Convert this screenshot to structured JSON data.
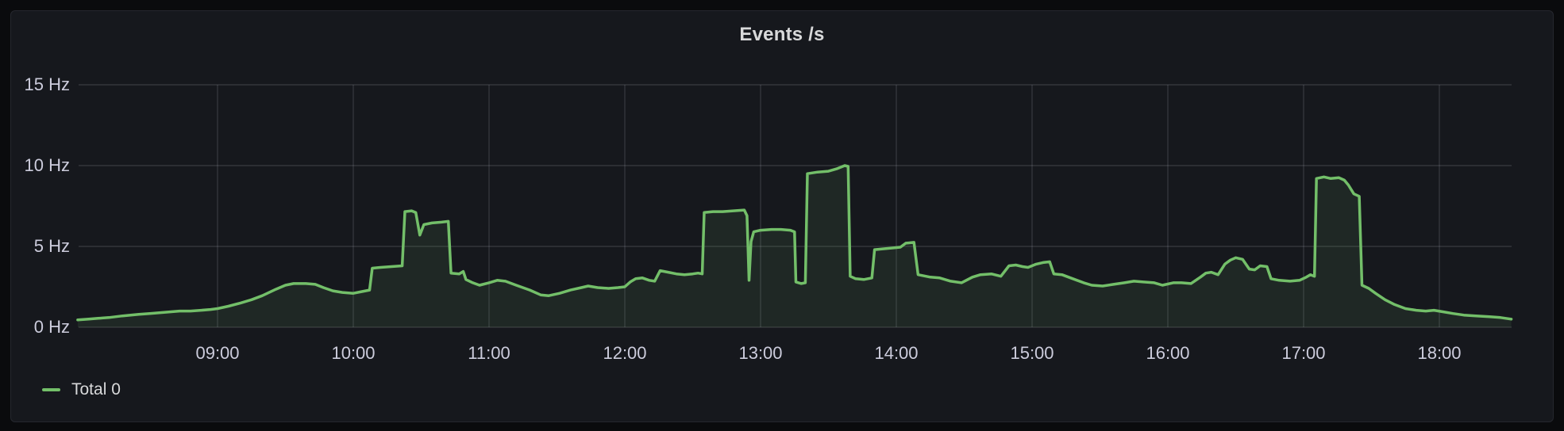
{
  "panel": {
    "title": "Events /s"
  },
  "legend": {
    "series": [
      {
        "label": "Total 0",
        "color": "#73bf69"
      }
    ],
    "position": "bottom-left"
  },
  "colors": {
    "page_background": "#0a0b0d",
    "panel_background": "#16181d",
    "panel_border": "#25272e",
    "grid": "rgba(204,204,220,0.16)",
    "axis_text": "#ccccdc",
    "title_text": "#d8d9da",
    "series_line": "#73bf69",
    "series_fill": "rgba(115,191,105,0.10)"
  },
  "chart_data": {
    "type": "line",
    "title": "Events /s",
    "xlabel": "",
    "ylabel": "Hz",
    "unit": "Hz",
    "grid": true,
    "legend_position": "bottom-left",
    "x_range_hours": [
      7.97,
      18.53
    ],
    "ylim": [
      0,
      16.5
    ],
    "y_ticks": [
      {
        "label": "0 Hz",
        "value": 0
      },
      {
        "label": "5 Hz",
        "value": 5
      },
      {
        "label": "10 Hz",
        "value": 10
      },
      {
        "label": "15 Hz",
        "value": 15
      }
    ],
    "x_ticks": [
      {
        "label": "09:00",
        "hour": 9
      },
      {
        "label": "10:00",
        "hour": 10
      },
      {
        "label": "11:00",
        "hour": 11
      },
      {
        "label": "12:00",
        "hour": 12
      },
      {
        "label": "13:00",
        "hour": 13
      },
      {
        "label": "14:00",
        "hour": 14
      },
      {
        "label": "15:00",
        "hour": 15
      },
      {
        "label": "16:00",
        "hour": 16
      },
      {
        "label": "17:00",
        "hour": 17
      },
      {
        "label": "18:00",
        "hour": 18
      }
    ],
    "series": [
      {
        "name": "Total 0",
        "color": "#73bf69",
        "fill_color": "rgba(115,191,105,0.10)",
        "points_format": [
          "time_decimal_hours",
          "hz"
        ],
        "points": [
          [
            7.97,
            0.45
          ],
          [
            8.05,
            0.5
          ],
          [
            8.12,
            0.55
          ],
          [
            8.2,
            0.6
          ],
          [
            8.3,
            0.7
          ],
          [
            8.42,
            0.8
          ],
          [
            8.5,
            0.85
          ],
          [
            8.58,
            0.9
          ],
          [
            8.65,
            0.95
          ],
          [
            8.72,
            1.0
          ],
          [
            8.8,
            1.0
          ],
          [
            8.88,
            1.05
          ],
          [
            8.95,
            1.1
          ],
          [
            9.0,
            1.15
          ],
          [
            9.08,
            1.3
          ],
          [
            9.17,
            1.5
          ],
          [
            9.25,
            1.7
          ],
          [
            9.33,
            1.95
          ],
          [
            9.43,
            2.35
          ],
          [
            9.5,
            2.6
          ],
          [
            9.56,
            2.7
          ],
          [
            9.65,
            2.7
          ],
          [
            9.72,
            2.65
          ],
          [
            9.78,
            2.45
          ],
          [
            9.85,
            2.25
          ],
          [
            9.92,
            2.15
          ],
          [
            10.0,
            2.1
          ],
          [
            10.06,
            2.2
          ],
          [
            10.12,
            2.3
          ],
          [
            10.14,
            3.65
          ],
          [
            10.2,
            3.7
          ],
          [
            10.28,
            3.75
          ],
          [
            10.36,
            3.8
          ],
          [
            10.38,
            7.15
          ],
          [
            10.43,
            7.2
          ],
          [
            10.46,
            7.1
          ],
          [
            10.49,
            5.7
          ],
          [
            10.52,
            6.35
          ],
          [
            10.58,
            6.45
          ],
          [
            10.65,
            6.5
          ],
          [
            10.7,
            6.55
          ],
          [
            10.72,
            3.35
          ],
          [
            10.78,
            3.3
          ],
          [
            10.81,
            3.45
          ],
          [
            10.83,
            2.95
          ],
          [
            10.88,
            2.75
          ],
          [
            10.93,
            2.6
          ],
          [
            11.0,
            2.75
          ],
          [
            11.06,
            2.9
          ],
          [
            11.12,
            2.85
          ],
          [
            11.2,
            2.6
          ],
          [
            11.3,
            2.3
          ],
          [
            11.38,
            2.0
          ],
          [
            11.44,
            1.95
          ],
          [
            11.52,
            2.1
          ],
          [
            11.6,
            2.3
          ],
          [
            11.68,
            2.45
          ],
          [
            11.73,
            2.55
          ],
          [
            11.8,
            2.45
          ],
          [
            11.88,
            2.4
          ],
          [
            11.95,
            2.45
          ],
          [
            12.0,
            2.5
          ],
          [
            12.04,
            2.8
          ],
          [
            12.08,
            3.0
          ],
          [
            12.13,
            3.05
          ],
          [
            12.18,
            2.9
          ],
          [
            12.22,
            2.85
          ],
          [
            12.26,
            3.5
          ],
          [
            12.32,
            3.4
          ],
          [
            12.38,
            3.3
          ],
          [
            12.44,
            3.25
          ],
          [
            12.5,
            3.3
          ],
          [
            12.54,
            3.35
          ],
          [
            12.57,
            3.3
          ],
          [
            12.585,
            7.1
          ],
          [
            12.65,
            7.15
          ],
          [
            12.72,
            7.15
          ],
          [
            12.8,
            7.2
          ],
          [
            12.88,
            7.25
          ],
          [
            12.9,
            6.9
          ],
          [
            12.915,
            2.9
          ],
          [
            12.93,
            5.3
          ],
          [
            12.95,
            5.9
          ],
          [
            13.0,
            6.0
          ],
          [
            13.08,
            6.05
          ],
          [
            13.15,
            6.05
          ],
          [
            13.22,
            6.0
          ],
          [
            13.25,
            5.9
          ],
          [
            13.26,
            2.8
          ],
          [
            13.3,
            2.7
          ],
          [
            13.33,
            2.75
          ],
          [
            13.345,
            9.5
          ],
          [
            13.42,
            9.6
          ],
          [
            13.5,
            9.65
          ],
          [
            13.56,
            9.8
          ],
          [
            13.62,
            10.0
          ],
          [
            13.645,
            9.95
          ],
          [
            13.66,
            3.15
          ],
          [
            13.7,
            3.0
          ],
          [
            13.76,
            2.95
          ],
          [
            13.82,
            3.05
          ],
          [
            13.84,
            4.8
          ],
          [
            13.9,
            4.85
          ],
          [
            13.97,
            4.9
          ],
          [
            14.03,
            4.95
          ],
          [
            14.07,
            5.2
          ],
          [
            14.13,
            5.25
          ],
          [
            14.16,
            3.25
          ],
          [
            14.25,
            3.1
          ],
          [
            14.32,
            3.05
          ],
          [
            14.4,
            2.85
          ],
          [
            14.48,
            2.75
          ],
          [
            14.56,
            3.1
          ],
          [
            14.62,
            3.25
          ],
          [
            14.7,
            3.3
          ],
          [
            14.77,
            3.15
          ],
          [
            14.83,
            3.8
          ],
          [
            14.88,
            3.85
          ],
          [
            14.93,
            3.75
          ],
          [
            14.97,
            3.7
          ],
          [
            15.03,
            3.9
          ],
          [
            15.08,
            4.0
          ],
          [
            15.13,
            4.05
          ],
          [
            15.16,
            3.3
          ],
          [
            15.22,
            3.25
          ],
          [
            15.3,
            3.0
          ],
          [
            15.38,
            2.75
          ],
          [
            15.44,
            2.6
          ],
          [
            15.52,
            2.55
          ],
          [
            15.6,
            2.65
          ],
          [
            15.68,
            2.75
          ],
          [
            15.75,
            2.85
          ],
          [
            15.82,
            2.8
          ],
          [
            15.9,
            2.75
          ],
          [
            15.96,
            2.6
          ],
          [
            16.04,
            2.75
          ],
          [
            16.1,
            2.75
          ],
          [
            16.17,
            2.7
          ],
          [
            16.24,
            3.1
          ],
          [
            16.28,
            3.35
          ],
          [
            16.32,
            3.4
          ],
          [
            16.37,
            3.25
          ],
          [
            16.42,
            3.9
          ],
          [
            16.46,
            4.15
          ],
          [
            16.5,
            4.3
          ],
          [
            16.55,
            4.2
          ],
          [
            16.6,
            3.6
          ],
          [
            16.64,
            3.55
          ],
          [
            16.68,
            3.8
          ],
          [
            16.73,
            3.75
          ],
          [
            16.76,
            3.0
          ],
          [
            16.82,
            2.9
          ],
          [
            16.9,
            2.85
          ],
          [
            16.97,
            2.9
          ],
          [
            17.02,
            3.1
          ],
          [
            17.05,
            3.25
          ],
          [
            17.08,
            3.15
          ],
          [
            17.095,
            9.2
          ],
          [
            17.15,
            9.3
          ],
          [
            17.2,
            9.2
          ],
          [
            17.26,
            9.25
          ],
          [
            17.3,
            9.1
          ],
          [
            17.33,
            8.8
          ],
          [
            17.37,
            8.25
          ],
          [
            17.41,
            8.1
          ],
          [
            17.43,
            2.6
          ],
          [
            17.48,
            2.4
          ],
          [
            17.53,
            2.1
          ],
          [
            17.6,
            1.7
          ],
          [
            17.67,
            1.4
          ],
          [
            17.75,
            1.15
          ],
          [
            17.83,
            1.05
          ],
          [
            17.9,
            1.0
          ],
          [
            17.96,
            1.05
          ],
          [
            18.03,
            0.95
          ],
          [
            18.1,
            0.85
          ],
          [
            18.18,
            0.75
          ],
          [
            18.27,
            0.7
          ],
          [
            18.37,
            0.65
          ],
          [
            18.45,
            0.6
          ],
          [
            18.53,
            0.5
          ]
        ]
      }
    ]
  }
}
